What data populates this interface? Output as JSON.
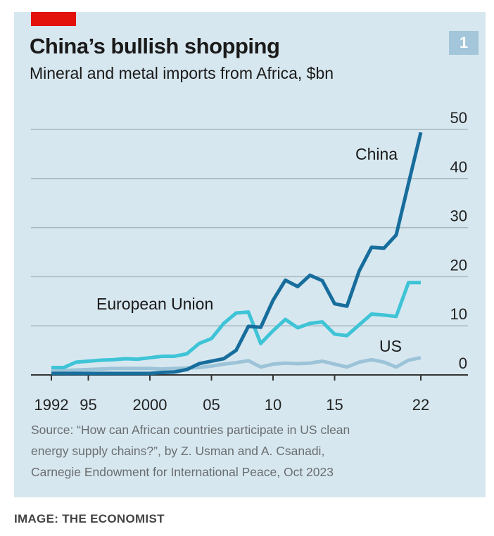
{
  "header": {
    "title": "China’s bullish shopping",
    "subtitle": "Mineral and metal imports from Africa, $bn",
    "badge": "1"
  },
  "source": [
    "Source: “How can African countries participate in US clean",
    "energy supply chains?”, by Z. Usman and A. Csanadi,",
    "Carnegie Endowment for International Peace, Oct 2023"
  ],
  "caption": "IMAGE: THE ECONOMIST",
  "colors": {
    "china": "#176d9c",
    "eu": "#3ec4d6",
    "us": "#9cc3d8",
    "background": "#d7e7ef",
    "accent": "#e3120b"
  },
  "chart_data": {
    "type": "line",
    "title": "China’s bullish shopping",
    "ylabel": "Mineral and metal imports from Africa, $bn",
    "x": [
      1992,
      1993,
      1994,
      1995,
      1996,
      1997,
      1998,
      1999,
      2000,
      2001,
      2002,
      2003,
      2004,
      2005,
      2006,
      2007,
      2008,
      2009,
      2010,
      2011,
      2012,
      2013,
      2014,
      2015,
      2016,
      2017,
      2018,
      2019,
      2020,
      2021,
      2022
    ],
    "ylim": [
      0,
      50
    ],
    "yticks": [
      0,
      10,
      20,
      30,
      40,
      50
    ],
    "xticks": [
      {
        "value": 1992,
        "label": "1992"
      },
      {
        "value": 1995,
        "label": "95"
      },
      {
        "value": 2000,
        "label": "2000"
      },
      {
        "value": 2005,
        "label": "05"
      },
      {
        "value": 2010,
        "label": "10"
      },
      {
        "value": 2015,
        "label": "15"
      },
      {
        "value": 2022,
        "label": "22"
      }
    ],
    "grid": true,
    "series": [
      {
        "name": "China",
        "color": "#176d9c",
        "values": [
          0.3,
          0.3,
          0.3,
          0.3,
          0.3,
          0.3,
          0.3,
          0.3,
          0.3,
          0.5,
          0.6,
          1.1,
          2.3,
          2.8,
          3.3,
          5,
          9.9,
          9.7,
          15.2,
          19.3,
          18,
          20.3,
          19.2,
          14.5,
          14,
          21.2,
          26,
          25.8,
          28.5,
          39,
          49.4
        ]
      },
      {
        "name": "European Union",
        "color": "#3ec4d6",
        "values": [
          1.5,
          1.5,
          2.6,
          2.8,
          3,
          3.1,
          3.3,
          3.2,
          3.5,
          3.8,
          3.8,
          4.3,
          6.4,
          7.4,
          10.5,
          12.6,
          12.8,
          6.4,
          9,
          11.3,
          9.6,
          10.5,
          10.8,
          8.3,
          8,
          10.2,
          12.4,
          12.2,
          11.9,
          18.8,
          18.8
        ]
      },
      {
        "name": "US",
        "color": "#9cc3d8",
        "values": [
          0.9,
          0.9,
          1,
          1.1,
          1.2,
          1.3,
          1.3,
          1.3,
          1.3,
          1.2,
          1.3,
          1.4,
          1.5,
          1.8,
          2.2,
          2.5,
          2.9,
          1.6,
          2.2,
          2.4,
          2.3,
          2.4,
          2.8,
          2.2,
          1.6,
          2.6,
          3.1,
          2.6,
          1.6,
          3,
          3.5
        ]
      }
    ]
  }
}
